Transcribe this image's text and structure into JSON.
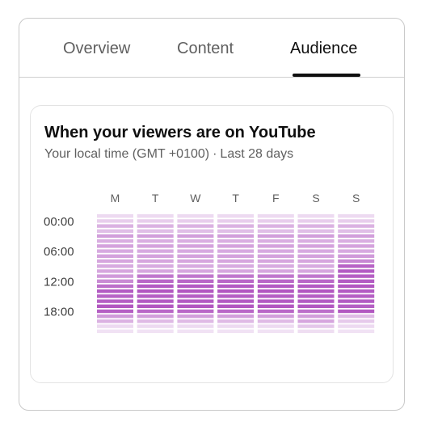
{
  "tabs": [
    {
      "label": "Overview",
      "active": false
    },
    {
      "label": "Content",
      "active": false
    },
    {
      "label": "Audience",
      "active": true
    }
  ],
  "card": {
    "title": "When your viewers are on YouTube",
    "subtitle_time": "Your local time (GMT +0100)",
    "subtitle_separator": "·",
    "subtitle_range": "Last 28 days"
  },
  "colors": {
    "accent": "#0f0f0f",
    "heat_max": "#9c27b0",
    "heat_min": "#f6eef8"
  },
  "chart_data": {
    "type": "heatmap",
    "columns": [
      "M",
      "T",
      "W",
      "T",
      "F",
      "S",
      "S"
    ],
    "row_labels": [
      "00:00",
      "06:00",
      "12:00",
      "18:00"
    ],
    "rows_per_column": 24,
    "value_scale": "relative intensity 0-1",
    "values": [
      [
        0.1,
        0.16,
        0.3,
        0.24,
        0.4,
        0.32,
        0.38,
        0.34,
        0.38,
        0.36,
        0.34,
        0.36,
        0.42,
        0.5,
        0.64,
        0.74,
        0.7,
        0.72,
        0.76,
        0.72,
        0.42,
        0.3,
        0.1,
        0.06
      ],
      [
        0.1,
        0.16,
        0.3,
        0.24,
        0.4,
        0.32,
        0.38,
        0.34,
        0.38,
        0.36,
        0.34,
        0.36,
        0.6,
        0.68,
        0.74,
        0.76,
        0.72,
        0.74,
        0.76,
        0.68,
        0.4,
        0.26,
        0.1,
        0.06
      ],
      [
        0.1,
        0.16,
        0.3,
        0.24,
        0.4,
        0.32,
        0.38,
        0.34,
        0.38,
        0.36,
        0.34,
        0.36,
        0.6,
        0.68,
        0.74,
        0.76,
        0.72,
        0.74,
        0.76,
        0.68,
        0.4,
        0.26,
        0.1,
        0.06
      ],
      [
        0.1,
        0.16,
        0.3,
        0.24,
        0.4,
        0.32,
        0.38,
        0.34,
        0.38,
        0.36,
        0.34,
        0.36,
        0.6,
        0.68,
        0.74,
        0.76,
        0.72,
        0.74,
        0.76,
        0.68,
        0.4,
        0.26,
        0.1,
        0.06
      ],
      [
        0.1,
        0.16,
        0.3,
        0.24,
        0.4,
        0.32,
        0.38,
        0.34,
        0.38,
        0.36,
        0.34,
        0.36,
        0.6,
        0.68,
        0.74,
        0.76,
        0.72,
        0.74,
        0.76,
        0.68,
        0.4,
        0.26,
        0.1,
        0.06
      ],
      [
        0.1,
        0.16,
        0.3,
        0.24,
        0.4,
        0.32,
        0.38,
        0.34,
        0.38,
        0.36,
        0.34,
        0.36,
        0.6,
        0.68,
        0.74,
        0.76,
        0.72,
        0.74,
        0.76,
        0.64,
        0.4,
        0.36,
        0.2,
        0.08
      ],
      [
        0.1,
        0.16,
        0.3,
        0.24,
        0.4,
        0.32,
        0.38,
        0.34,
        0.42,
        0.52,
        0.7,
        0.74,
        0.72,
        0.74,
        0.76,
        0.74,
        0.72,
        0.74,
        0.72,
        0.76,
        0.26,
        0.18,
        0.1,
        0.06
      ]
    ]
  }
}
